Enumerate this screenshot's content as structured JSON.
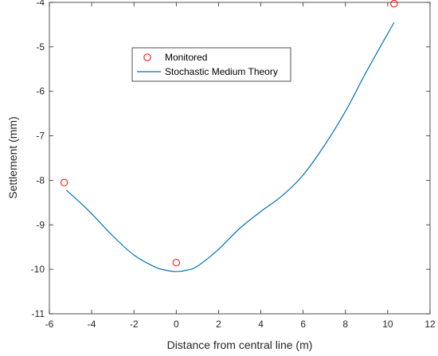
{
  "chart_data": {
    "type": "line",
    "xlabel": "Distance from central line (m)",
    "ylabel": "Settlement (mm)",
    "xlim": [
      -6,
      12
    ],
    "ylim": [
      -11,
      -4
    ],
    "xticks": [
      "-6",
      "-4",
      "-2",
      "0",
      "2",
      "4",
      "6",
      "8",
      "10",
      "12"
    ],
    "yticks": [
      "-11",
      "-10",
      "-9",
      "-8",
      "-7",
      "-6",
      "-5",
      "-4"
    ],
    "grid": false,
    "legend_position": "top-left",
    "series": [
      {
        "name": "Monitored",
        "type": "scatter",
        "marker": "circle-open",
        "color": "#ff0000",
        "x": [
          -5.3,
          0.0,
          10.3
        ],
        "y": [
          -8.05,
          -9.85,
          -4.03
        ]
      },
      {
        "name": "Stochastic Medium Theory",
        "type": "line",
        "color": "#0072bd",
        "x": [
          -5.2,
          -4.5,
          -4.0,
          -3.0,
          -2.0,
          -1.0,
          -0.5,
          0.0,
          0.5,
          1.0,
          2.0,
          3.0,
          4.0,
          5.0,
          6.0,
          7.0,
          8.0,
          9.0,
          10.3
        ],
        "y": [
          -8.22,
          -8.52,
          -8.75,
          -9.25,
          -9.68,
          -9.95,
          -10.02,
          -10.05,
          -10.02,
          -9.93,
          -9.55,
          -9.08,
          -8.7,
          -8.35,
          -7.88,
          -7.22,
          -6.45,
          -5.55,
          -4.45
        ]
      }
    ]
  }
}
